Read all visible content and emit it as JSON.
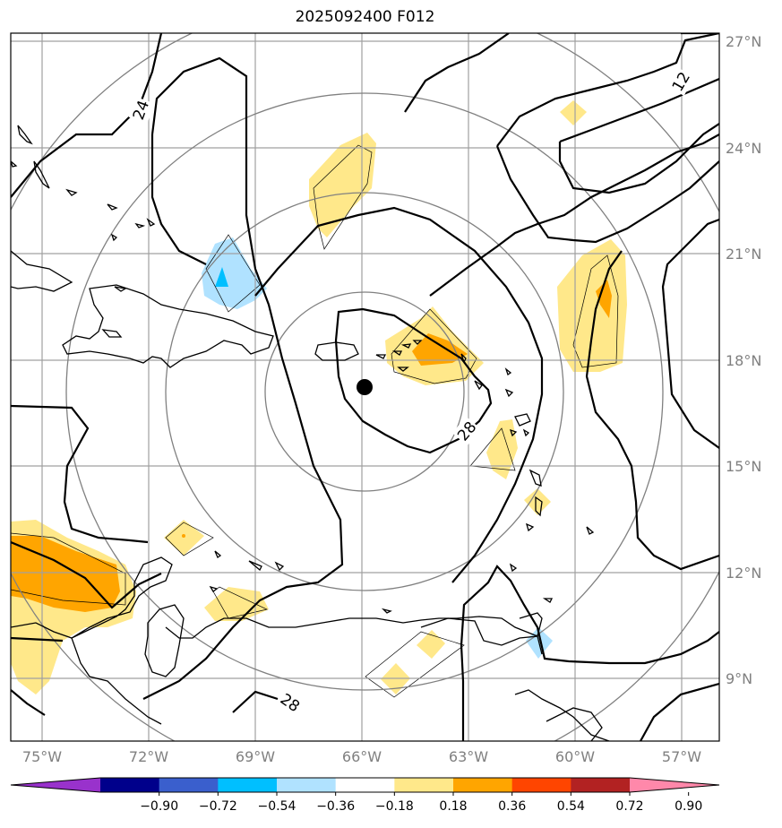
{
  "title": "2025092400 F012",
  "lon_labels": [
    "75°W",
    "72°W",
    "69°W",
    "66°W",
    "63°W",
    "60°W",
    "57°W"
  ],
  "lat_labels": [
    "27°N",
    "24°N",
    "21°N",
    "18°N",
    "15°N",
    "12°N",
    "9°N"
  ],
  "contour_labels": [
    "24",
    "12",
    "28",
    "28"
  ],
  "storm_center": {
    "lon": -65.9,
    "lat": 17.2
  },
  "colorbar": {
    "ticks": [
      "−0.90",
      "−0.72",
      "−0.54",
      "−0.36",
      "−0.18",
      "0.18",
      "0.36",
      "0.54",
      "0.72",
      "0.90"
    ],
    "colors": [
      "#9932cc",
      "#00008b",
      "#3a5fcd",
      "#00bfff",
      "#b0e2ff",
      "#ffffff",
      "#ffe88a",
      "#ffa500",
      "#ff4500",
      "#b22222",
      "#ff88aa"
    ]
  },
  "colors": {
    "grid": "#a0a0a0",
    "range_rings": "#808080",
    "contours": "#000000",
    "positive_low": "#ffe88a",
    "positive_mid": "#ffa500",
    "negative": "#b0e2ff",
    "negative_core": "#00bfff"
  }
}
